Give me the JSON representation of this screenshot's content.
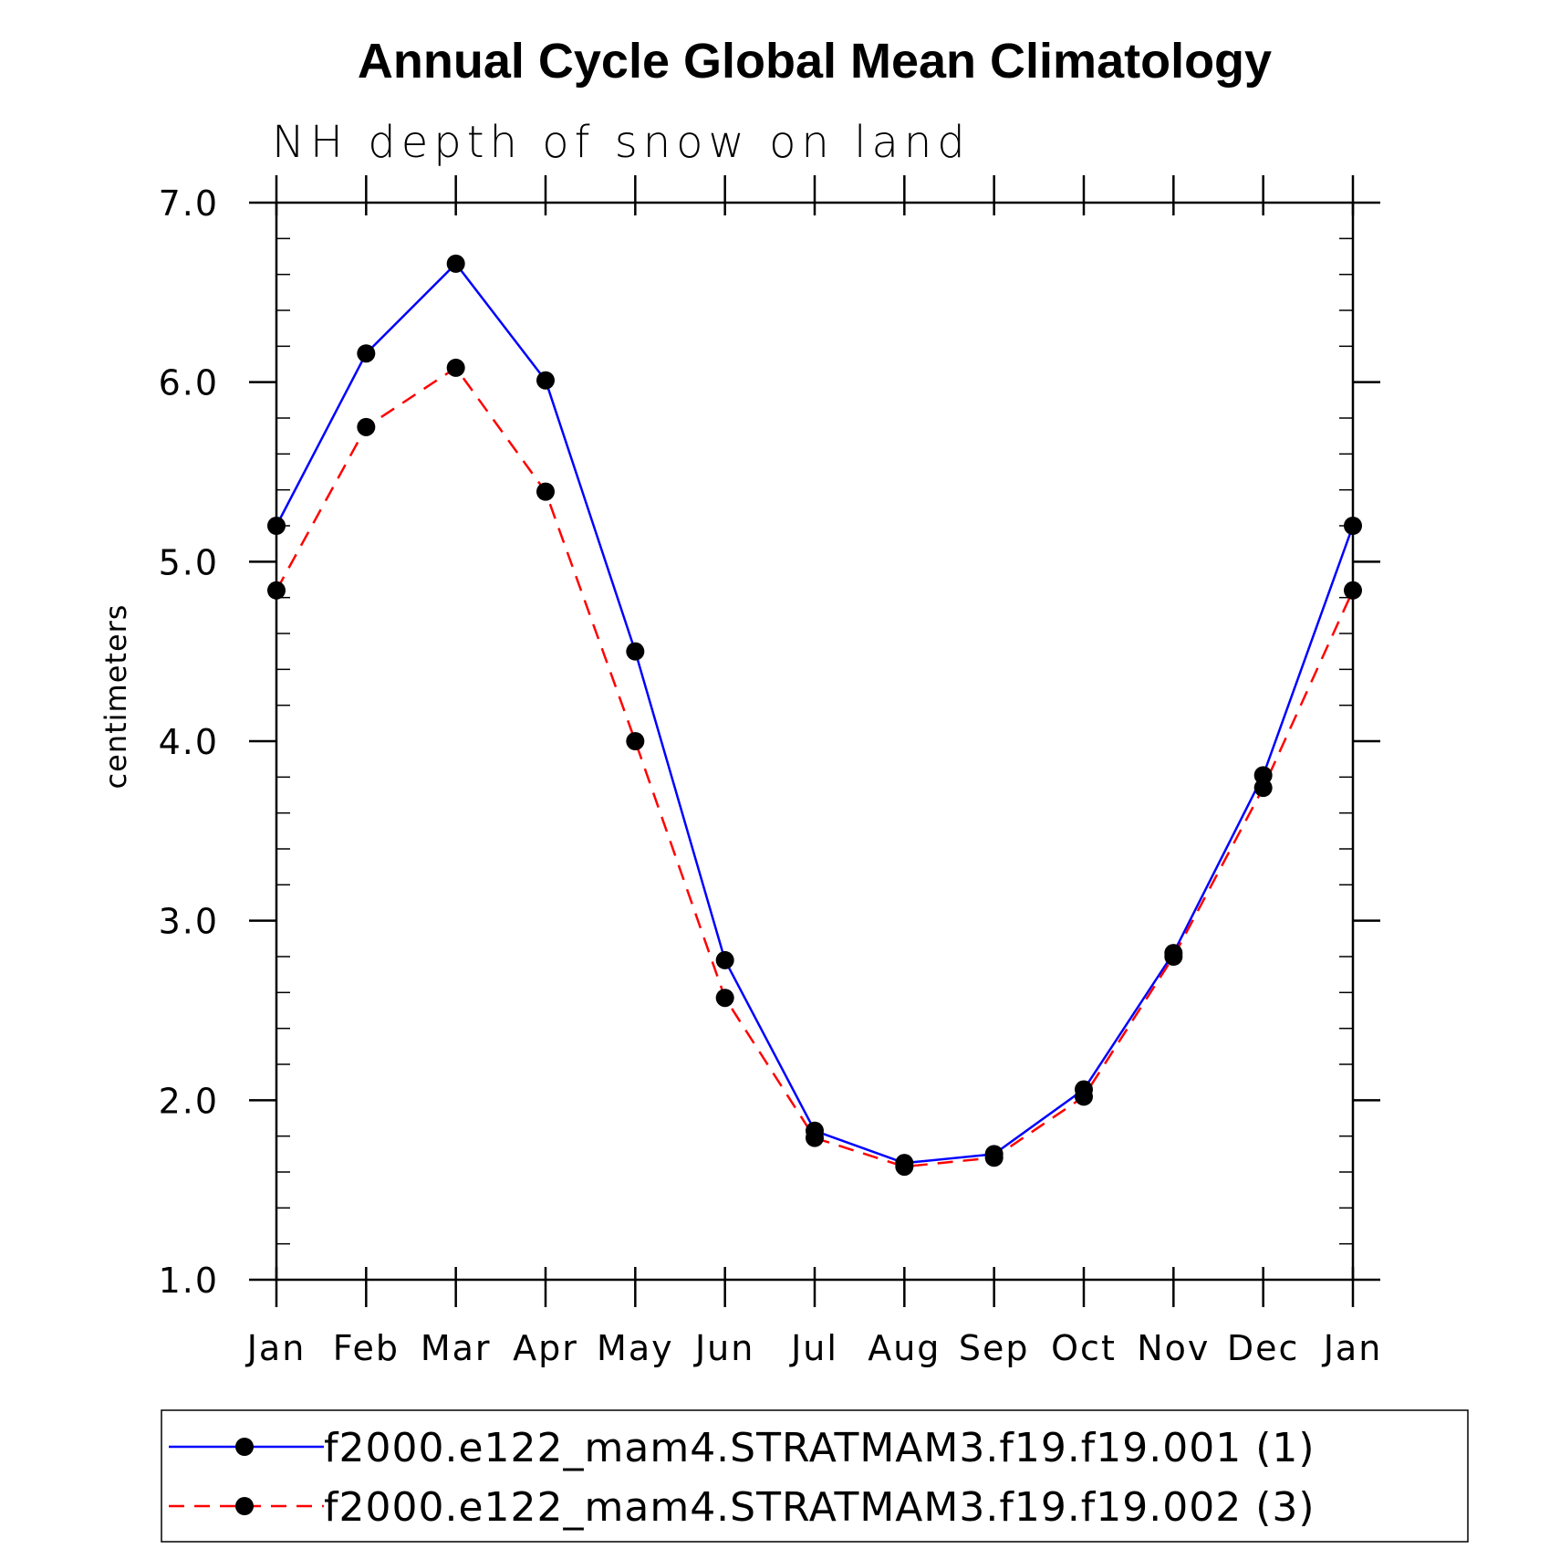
{
  "chart_data": {
    "type": "line",
    "title": "Annual Cycle Global Mean Climatology",
    "subtitle": "NH depth of snow on land",
    "xlabel": "",
    "ylabel": "centimeters",
    "categories": [
      "Jan",
      "Feb",
      "Mar",
      "Apr",
      "May",
      "Jun",
      "Jul",
      "Aug",
      "Sep",
      "Oct",
      "Nov",
      "Dec",
      "Jan"
    ],
    "ylim": [
      1.0,
      7.0
    ],
    "yticks": [
      1.0,
      2.0,
      3.0,
      4.0,
      5.0,
      6.0,
      7.0
    ],
    "ytick_labels": [
      "1.0",
      "2.0",
      "3.0",
      "4.0",
      "5.0",
      "6.0",
      "7.0"
    ],
    "series": [
      {
        "name": "f2000.e122_mam4.STRATMAM3.f19.f19.001 (1)",
        "color": "#0000ff",
        "dash": "solid",
        "values": [
          5.2,
          6.16,
          6.66,
          6.01,
          4.5,
          2.78,
          1.83,
          1.65,
          1.7,
          2.06,
          2.82,
          3.81,
          5.2
        ]
      },
      {
        "name": "f2000.e122_mam4.STRATMAM3.f19.f19.002 (3)",
        "color": "#ff0000",
        "dash": "dashed",
        "values": [
          4.84,
          5.75,
          6.08,
          5.39,
          4.0,
          2.57,
          1.79,
          1.63,
          1.68,
          2.02,
          2.8,
          3.74,
          4.84
        ]
      }
    ],
    "legend": {
      "position": "bottom",
      "entries": [
        "f2000.e122_mam4.STRATMAM3.f19.f19.001 (1)",
        "f2000.e122_mam4.STRATMAM3.f19.f19.002 (3)"
      ]
    }
  }
}
